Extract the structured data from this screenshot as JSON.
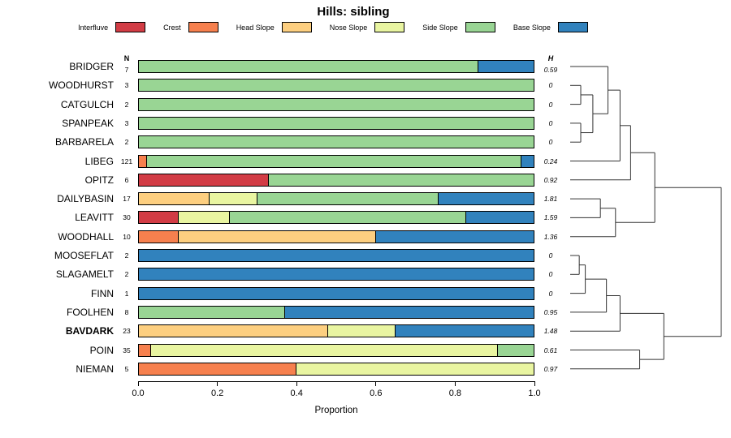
{
  "title": "Hills: sibling",
  "chart_data": {
    "type": "bar",
    "subtype": "horizontal_stacked_bar_with_dendrogram",
    "xlabel": "Proportion",
    "xlim": [
      0.0,
      1.0
    ],
    "x_ticks": [
      "0.0",
      "0.2",
      "0.4",
      "0.6",
      "0.8",
      "1.0"
    ],
    "n_header": "N",
    "h_header": "H",
    "categories": [
      {
        "label": "Interfluve",
        "color": "#D23C45"
      },
      {
        "label": "Crest",
        "color": "#F6804E"
      },
      {
        "label": "Head Slope",
        "color": "#FDCF80"
      },
      {
        "label": "Nose Slope",
        "color": "#E9F5A1"
      },
      {
        "label": "Side Slope",
        "color": "#99D594"
      },
      {
        "label": "Base Slope",
        "color": "#3182BD"
      }
    ],
    "rows": [
      {
        "name": "BRIDGER",
        "n": "7",
        "h": "0.59",
        "segments": [
          [
            "Side Slope",
            0.86
          ],
          [
            "Base Slope",
            0.14
          ]
        ]
      },
      {
        "name": "WOODHURST",
        "n": "3",
        "h": "0",
        "segments": [
          [
            "Side Slope",
            1.0
          ]
        ]
      },
      {
        "name": "CATGULCH",
        "n": "2",
        "h": "0",
        "segments": [
          [
            "Side Slope",
            1.0
          ]
        ]
      },
      {
        "name": "SPANPEAK",
        "n": "3",
        "h": "0",
        "segments": [
          [
            "Side Slope",
            1.0
          ]
        ]
      },
      {
        "name": "BARBARELA",
        "n": "2",
        "h": "0",
        "segments": [
          [
            "Side Slope",
            1.0
          ]
        ]
      },
      {
        "name": "LIBEG",
        "n": "121",
        "h": "0.24",
        "segments": [
          [
            "Crest",
            0.02
          ],
          [
            "Side Slope",
            0.95
          ],
          [
            "Base Slope",
            0.03
          ]
        ]
      },
      {
        "name": "OPITZ",
        "n": "6",
        "h": "0.92",
        "segments": [
          [
            "Interfluve",
            0.33
          ],
          [
            "Side Slope",
            0.67
          ]
        ]
      },
      {
        "name": "DAILYBASIN",
        "n": "17",
        "h": "1.81",
        "segments": [
          [
            "Head Slope",
            0.18
          ],
          [
            "Nose Slope",
            0.12
          ],
          [
            "Side Slope",
            0.46
          ],
          [
            "Base Slope",
            0.24
          ]
        ]
      },
      {
        "name": "LEAVITT",
        "n": "30",
        "h": "1.59",
        "segments": [
          [
            "Interfluve",
            0.1
          ],
          [
            "Nose Slope",
            0.13
          ],
          [
            "Side Slope",
            0.6
          ],
          [
            "Base Slope",
            0.17
          ]
        ]
      },
      {
        "name": "WOODHALL",
        "n": "10",
        "h": "1.36",
        "segments": [
          [
            "Crest",
            0.1
          ],
          [
            "Head Slope",
            0.5
          ],
          [
            "Base Slope",
            0.4
          ]
        ]
      },
      {
        "name": "MOOSEFLAT",
        "n": "2",
        "h": "0",
        "segments": [
          [
            "Base Slope",
            1.0
          ]
        ]
      },
      {
        "name": "SLAGAMELT",
        "n": "2",
        "h": "0",
        "segments": [
          [
            "Base Slope",
            1.0
          ]
        ]
      },
      {
        "name": "FINN",
        "n": "1",
        "h": "0",
        "segments": [
          [
            "Base Slope",
            1.0
          ]
        ]
      },
      {
        "name": "FOOLHEN",
        "n": "8",
        "h": "0.95",
        "segments": [
          [
            "Side Slope",
            0.37
          ],
          [
            "Base Slope",
            0.63
          ]
        ]
      },
      {
        "name": "BAVDARK",
        "n": "23",
        "h": "1.48",
        "bold": true,
        "segments": [
          [
            "Head Slope",
            0.48
          ],
          [
            "Nose Slope",
            0.17
          ],
          [
            "Base Slope",
            0.35
          ]
        ]
      },
      {
        "name": "POIN",
        "n": "35",
        "h": "0.61",
        "segments": [
          [
            "Crest",
            0.03
          ],
          [
            "Nose Slope",
            0.88
          ],
          [
            "Side Slope",
            0.09
          ]
        ]
      },
      {
        "name": "NIEMAN",
        "n": "5",
        "h": "0.97",
        "segments": [
          [
            "Crest",
            0.4
          ],
          [
            "Nose Slope",
            0.6
          ]
        ]
      }
    ],
    "dendrogram": {
      "tree": {
        "h": 1.0,
        "c": [
          {
            "h": 0.56,
            "c": [
              {
                "h": 0.4,
                "c": [
                  {
                    "h": 0.33,
                    "c": [
                      {
                        "h": 0.25,
                        "c": [
                          0,
                          {
                            "h": 0.15,
                            "c": [
                              {
                                "h": 0.07,
                                "c": [
                                  1,
                                  2
                                ]
                              },
                              {
                                "h": 0.07,
                                "c": [
                                  3,
                                  4
                                ]
                              }
                            ]
                          }
                        ]
                      },
                      5
                    ]
                  },
                  6
                ]
              },
              {
                "h": 0.3,
                "c": [
                  {
                    "h": 0.2,
                    "c": [
                      7,
                      8
                    ]
                  },
                  9
                ]
              }
            ]
          },
          {
            "h": 0.62,
            "c": [
              {
                "h": 0.33,
                "c": [
                  {
                    "h": 0.24,
                    "c": [
                      {
                        "h": 0.1,
                        "c": [
                          {
                            "h": 0.06,
                            "c": [
                              10,
                              11
                            ]
                          },
                          12
                        ]
                      },
                      13
                    ]
                  },
                  14
                ]
              },
              {
                "h": 0.46,
                "c": [
                  15,
                  16
                ]
              }
            ]
          }
        ]
      }
    }
  }
}
